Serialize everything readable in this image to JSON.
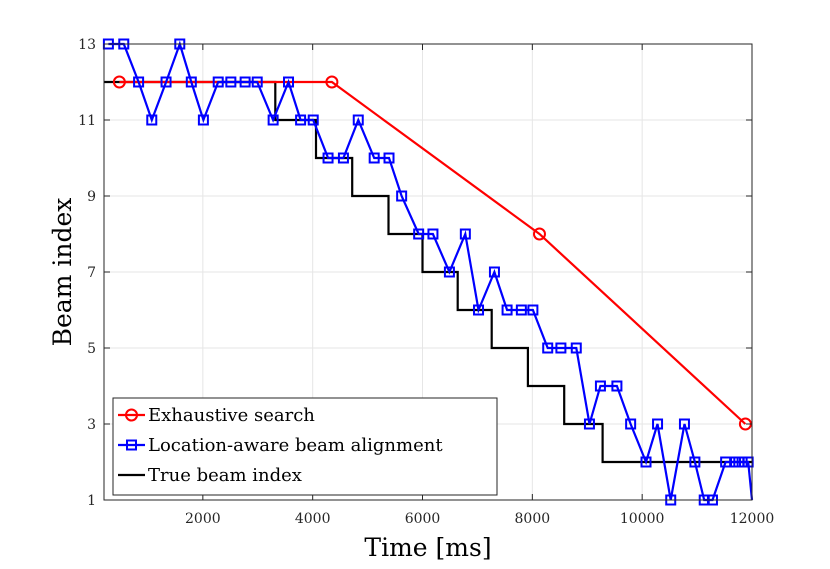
{
  "chart_data": {
    "type": "line",
    "title": "",
    "xlabel": "Time [ms]",
    "ylabel": "Beam index",
    "xlim": [
      200,
      12000
    ],
    "ylim": [
      1,
      13
    ],
    "x_ticks": [
      2000,
      4000,
      6000,
      8000,
      10000,
      12000
    ],
    "x_tick_labels": [
      "2000",
      "4000",
      "6000",
      "8000",
      "10000",
      "12000"
    ],
    "y_ticks": [
      1,
      3,
      5,
      7,
      9,
      11,
      13
    ],
    "y_tick_labels": [
      "1",
      "3",
      "5",
      "7",
      "9",
      "11",
      "13"
    ],
    "grid": true,
    "legend_position": "bottom-left",
    "series": [
      {
        "name": "Exhaustive search",
        "color": "#ff0000",
        "marker": "circle",
        "style": "line",
        "x": [
          480,
          4350,
          8130,
          11880
        ],
        "y": [
          12,
          12,
          8,
          3
        ]
      },
      {
        "name": "Location-aware beam alignment",
        "color": "#0000ff",
        "marker": "square",
        "style": "line",
        "x": [
          280,
          560,
          830,
          1070,
          1330,
          1580,
          1790,
          2010,
          2280,
          2510,
          2770,
          2990,
          3280,
          3560,
          3780,
          4010,
          4280,
          4560,
          4830,
          5120,
          5390,
          5620,
          5930,
          6190,
          6490,
          6780,
          7020,
          7310,
          7540,
          7800,
          8010,
          8280,
          8520,
          8800,
          9040,
          9240,
          9540,
          9790,
          10070,
          10280,
          10520,
          10770,
          10960,
          11130,
          11280,
          11520,
          11700,
          11760,
          11820,
          11930,
          12000
        ],
        "y": [
          13,
          13,
          12,
          11,
          12,
          13,
          12,
          11,
          12,
          12,
          12,
          12,
          11,
          12,
          11,
          11,
          10,
          10,
          11,
          10,
          10,
          9,
          8,
          8,
          7,
          8,
          6,
          7,
          6,
          6,
          6,
          5,
          5,
          5,
          3,
          4,
          4,
          3,
          2,
          3,
          1,
          3,
          2,
          1,
          1,
          2,
          2,
          2,
          2,
          2,
          1
        ]
      },
      {
        "name": "True beam index",
        "color": "#000000",
        "marker": "none",
        "style": "step",
        "x": [
          200,
          3320,
          4060,
          4720,
          5380,
          6000,
          6640,
          7260,
          7920,
          8580,
          9280,
          12000
        ],
        "y": [
          12,
          11,
          10,
          9,
          8,
          7,
          6,
          5,
          4,
          3,
          2,
          2
        ]
      }
    ]
  }
}
